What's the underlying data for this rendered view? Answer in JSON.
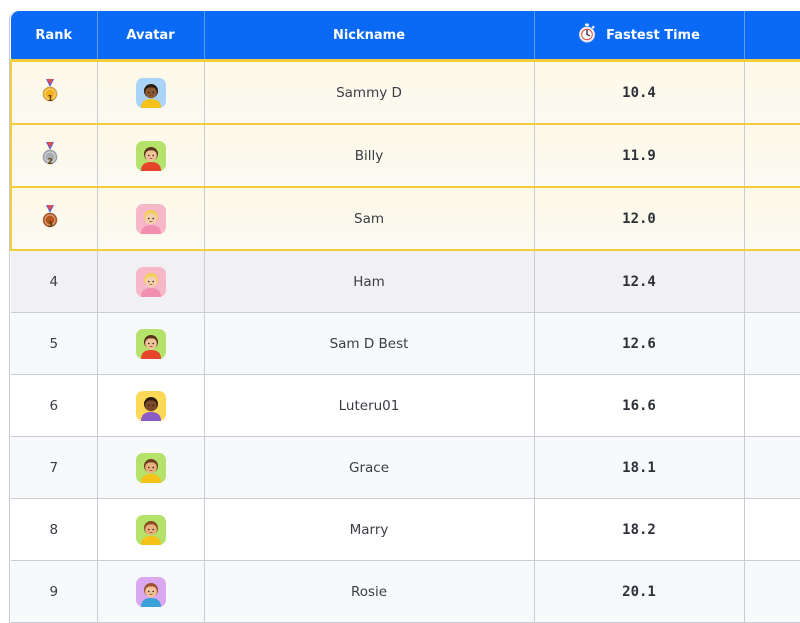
{
  "header": {
    "rank": "Rank",
    "avatar": "Avatar",
    "nickname": "Nickname",
    "fastest_time": "Fastest Time",
    "stopwatch_icon": "stopwatch-icon"
  },
  "rows": [
    {
      "rank": "1",
      "medal": "gold",
      "avatar": {
        "bg": "#a9d4f7",
        "skin": "#8a5a35",
        "hair": "#2b1a10",
        "shirt": "#f5c21a"
      },
      "nickname": "Sammy D",
      "time": "10.4"
    },
    {
      "rank": "2",
      "medal": "silver",
      "avatar": {
        "bg": "#b5e26a",
        "skin": "#f1c39a",
        "hair": "#5a3419",
        "shirt": "#e5452b"
      },
      "nickname": "Billy",
      "time": "11.9"
    },
    {
      "rank": "3",
      "medal": "bronze",
      "avatar": {
        "bg": "#f6b8c8",
        "skin": "#f5d0b0",
        "hair": "#f3cf4f",
        "shirt": "#f08fb0"
      },
      "nickname": "Sam",
      "time": "12.0"
    },
    {
      "rank": "4",
      "medal": "",
      "avatar": {
        "bg": "#f6b8c8",
        "skin": "#f5d0b0",
        "hair": "#f3cf4f",
        "shirt": "#f08fb0"
      },
      "nickname": "Ham",
      "time": "12.4"
    },
    {
      "rank": "5",
      "medal": "",
      "avatar": {
        "bg": "#b5e26a",
        "skin": "#f1c39a",
        "hair": "#5a3419",
        "shirt": "#e5452b"
      },
      "nickname": "Sam D Best",
      "time": "12.6"
    },
    {
      "rank": "6",
      "medal": "",
      "avatar": {
        "bg": "#fbd957",
        "skin": "#7a4a2a",
        "hair": "#2b1a10",
        "shirt": "#8b5cc4"
      },
      "nickname": "Luteru01",
      "time": "16.6"
    },
    {
      "rank": "7",
      "medal": "",
      "avatar": {
        "bg": "#b5e26a",
        "skin": "#e8b27f",
        "hair": "#6a3c1a",
        "shirt": "#f5c21a"
      },
      "nickname": "Grace",
      "time": "18.1"
    },
    {
      "rank": "8",
      "medal": "",
      "avatar": {
        "bg": "#b5e26a",
        "skin": "#e8b27f",
        "hair": "#8a4d22",
        "shirt": "#f5c21a"
      },
      "nickname": "Marry",
      "time": "18.2"
    },
    {
      "rank": "9",
      "medal": "",
      "avatar": {
        "bg": "#d9a8f0",
        "skin": "#f1c39a",
        "hair": "#9a5230",
        "shirt": "#3aa1d8"
      },
      "nickname": "Rosie",
      "time": "20.1"
    }
  ],
  "colors": {
    "header_bg": "#0a6af5",
    "gold_border": "#f5cc3c",
    "medal_gold": "#f2b01e",
    "medal_silver": "#a9abb3",
    "medal_bronze": "#b8561f"
  }
}
